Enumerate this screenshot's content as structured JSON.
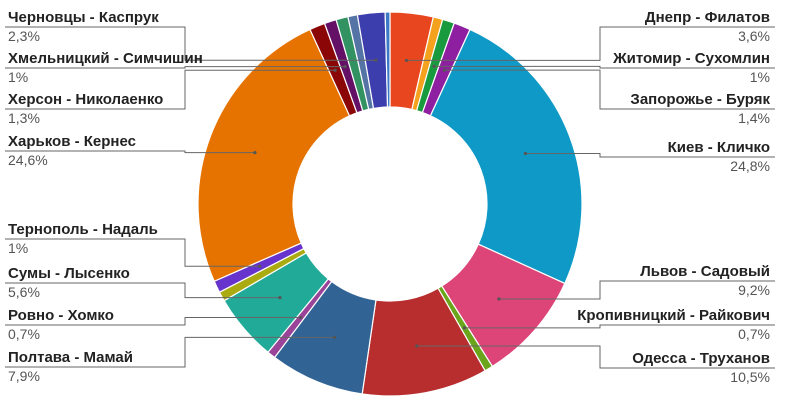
{
  "chart_data": {
    "type": "pie",
    "variant": "donut",
    "title": "",
    "legend": "none",
    "slices": [
      {
        "label": "Днепр - Филатов",
        "value": 3.6,
        "display": "3,6%",
        "color": "#e8461e",
        "side": "right"
      },
      {
        "label": "",
        "value": 0.8,
        "display": "",
        "color": "#f4a11d",
        "side": "none"
      },
      {
        "label": "Житомир - Сухомлин",
        "value": 1,
        "display": "1%",
        "color": "#1a9a3f",
        "side": "right"
      },
      {
        "label": "Запорожье - Буряк",
        "value": 1.4,
        "display": "1,4%",
        "color": "#8e1fa1",
        "side": "right"
      },
      {
        "label": "Киев - Кличко",
        "value": 24.8,
        "display": "24,8%",
        "color": "#0e99c6",
        "side": "right"
      },
      {
        "label": "Львов - Садовый",
        "value": 9.2,
        "display": "9,2%",
        "color": "#dd4477",
        "side": "right"
      },
      {
        "label": "Кропивницкий - Райкович",
        "value": 0.7,
        "display": "0,7%",
        "color": "#6aa51c",
        "side": "right"
      },
      {
        "label": "Одесса - Труханов",
        "value": 10.5,
        "display": "10,5%",
        "color": "#b82e2e",
        "side": "right"
      },
      {
        "label": "Полтава - Мамай",
        "value": 7.9,
        "display": "7,9%",
        "color": "#316395",
        "side": "left"
      },
      {
        "label": "Ровно - Хомко",
        "value": 0.7,
        "display": "0,7%",
        "color": "#994499",
        "side": "left"
      },
      {
        "label": "Сумы - Лысенко",
        "value": 5.6,
        "display": "5,6%",
        "color": "#22aa99",
        "side": "left"
      },
      {
        "label": "",
        "value": 0.8,
        "display": "",
        "color": "#aaaa11",
        "side": "none"
      },
      {
        "label": "Тернополь - Надаль",
        "value": 1,
        "display": "1%",
        "color": "#6633cc",
        "side": "left"
      },
      {
        "label": "Харьков - Кернес",
        "value": 24.6,
        "display": "24,6%",
        "color": "#e67300",
        "side": "left"
      },
      {
        "label": "Херсон - Николаенко",
        "value": 1.3,
        "display": "1,3%",
        "color": "#8b0707",
        "side": "left"
      },
      {
        "label": "Хмельницкий - Симчишин",
        "value": 1,
        "display": "1%",
        "color": "#651067",
        "side": "left"
      },
      {
        "label": "",
        "value": 1.0,
        "display": "",
        "color": "#329262",
        "side": "none"
      },
      {
        "label": "",
        "value": 0.8,
        "display": "",
        "color": "#5574a6",
        "side": "none"
      },
      {
        "label": "Черновцы - Каспрук",
        "value": 2.3,
        "display": "2,3%",
        "color": "#3b3eac",
        "side": "left"
      },
      {
        "label": "",
        "value": 0.4,
        "display": "",
        "color": "#3b78c5",
        "side": "none"
      }
    ]
  }
}
